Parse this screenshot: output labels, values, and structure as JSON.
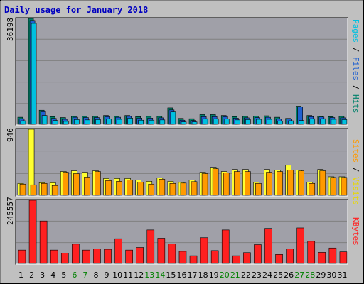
{
  "title": "Daily usage for January 2018",
  "colors": {
    "background": "#c0c0c0",
    "panel": "#a0a0a8",
    "grid": "#808080",
    "title": "#0000c0",
    "weekday_label": "#000000",
    "weekend_label": "#008000",
    "pages": "#00c0e0",
    "files": "#2060d0",
    "hits": "#00806a",
    "visits": "#ffff30",
    "sites": "#ff9a00",
    "kbytes": "#ff2020"
  },
  "legends": {
    "top": [
      {
        "text": "Pages",
        "color": "#00c0e0"
      },
      {
        "text": " / ",
        "color": "#000000"
      },
      {
        "text": "Files",
        "color": "#2060d0"
      },
      {
        "text": " / ",
        "color": "#000000"
      },
      {
        "text": "Hits",
        "color": "#00806a"
      }
    ],
    "middle": [
      {
        "text": "Sites",
        "color": "#ff9a00"
      },
      {
        "text": " / ",
        "color": "#000000"
      },
      {
        "text": "Visits",
        "color": "#e8d800"
      }
    ],
    "bottom": [
      {
        "text": "KBytes",
        "color": "#ff2020"
      }
    ]
  },
  "chart_data": [
    {
      "type": "bar",
      "panel": "top",
      "ymax_label": "36198",
      "ylim": [
        0,
        36198
      ],
      "categories": [
        "1",
        "2",
        "3",
        "4",
        "5",
        "6",
        "7",
        "8",
        "9",
        "10",
        "11",
        "12",
        "13",
        "14",
        "15",
        "16",
        "17",
        "18",
        "19",
        "20",
        "21",
        "22",
        "23",
        "24",
        "25",
        "26",
        "27",
        "28",
        "29",
        "30",
        "31"
      ],
      "weekend_days": [
        "6",
        "7",
        "13",
        "14",
        "20",
        "21",
        "27",
        "28"
      ],
      "series": [
        {
          "name": "Hits",
          "color": "#00806a",
          "values": [
            2400,
            36198,
            4800,
            2600,
            2300,
            2700,
            2700,
            2700,
            3000,
            2700,
            3000,
            2600,
            2700,
            2700,
            5600,
            2000,
            1900,
            3300,
            3300,
            3000,
            2600,
            2700,
            2800,
            2900,
            2400,
            2000,
            6200,
            3000,
            2800,
            2600,
            2700
          ]
        },
        {
          "name": "Files",
          "color": "#2060d0",
          "values": [
            1900,
            35500,
            4300,
            2000,
            1700,
            2400,
            2300,
            2300,
            2600,
            2400,
            2700,
            2100,
            2100,
            2200,
            4900,
            1400,
            1300,
            2600,
            2600,
            2600,
            2100,
            2200,
            2300,
            2400,
            1800,
            1800,
            6000,
            2600,
            2500,
            2300,
            2200
          ]
        },
        {
          "name": "Pages",
          "color": "#00c0e0",
          "values": [
            1200,
            34500,
            3000,
            1300,
            1000,
            1600,
            1500,
            1600,
            1800,
            1700,
            2100,
            1400,
            1400,
            1500,
            4200,
            800,
            800,
            1900,
            1900,
            1800,
            1500,
            1600,
            1700,
            1700,
            1100,
            1200,
            1300,
            1900,
            1900,
            1700,
            1600
          ]
        }
      ]
    },
    {
      "type": "bar",
      "panel": "middle",
      "ymax_label": "946",
      "ylim": [
        0,
        946
      ],
      "categories": [
        "1",
        "2",
        "3",
        "4",
        "5",
        "6",
        "7",
        "8",
        "9",
        "10",
        "11",
        "12",
        "13",
        "14",
        "15",
        "16",
        "17",
        "18",
        "19",
        "20",
        "21",
        "22",
        "23",
        "24",
        "25",
        "26",
        "27",
        "28",
        "29",
        "30",
        "31"
      ],
      "series": [
        {
          "name": "Visits",
          "color": "#ffff30",
          "values": [
            170,
            946,
            180,
            180,
            340,
            350,
            330,
            350,
            240,
            240,
            240,
            220,
            200,
            250,
            200,
            185,
            220,
            330,
            400,
            340,
            370,
            370,
            185,
            370,
            360,
            430,
            360,
            190,
            370,
            265,
            265
          ]
        },
        {
          "name": "Sites",
          "color": "#ff9a00",
          "values": [
            160,
            150,
            170,
            140,
            330,
            310,
            260,
            340,
            210,
            200,
            220,
            190,
            160,
            230,
            170,
            175,
            195,
            310,
            380,
            320,
            340,
            340,
            170,
            330,
            340,
            360,
            350,
            170,
            350,
            255,
            255
          ]
        }
      ]
    },
    {
      "type": "bar",
      "panel": "bottom",
      "ymax_label": "245557",
      "ylim": [
        0,
        245557
      ],
      "categories": [
        "1",
        "2",
        "3",
        "4",
        "5",
        "6",
        "7",
        "8",
        "9",
        "10",
        "11",
        "12",
        "13",
        "14",
        "15",
        "16",
        "17",
        "18",
        "19",
        "20",
        "21",
        "22",
        "23",
        "24",
        "25",
        "26",
        "27",
        "28",
        "29",
        "30",
        "31"
      ],
      "series": [
        {
          "name": "KBytes",
          "color": "#ff2020",
          "values": [
            52000,
            245557,
            165000,
            52000,
            40000,
            75000,
            52000,
            57000,
            55000,
            96000,
            52000,
            62000,
            130000,
            98000,
            76000,
            47000,
            30000,
            100000,
            50000,
            130000,
            30000,
            42000,
            73000,
            136000,
            35000,
            57000,
            138000,
            86000,
            43000,
            60000,
            45000
          ]
        }
      ]
    }
  ]
}
